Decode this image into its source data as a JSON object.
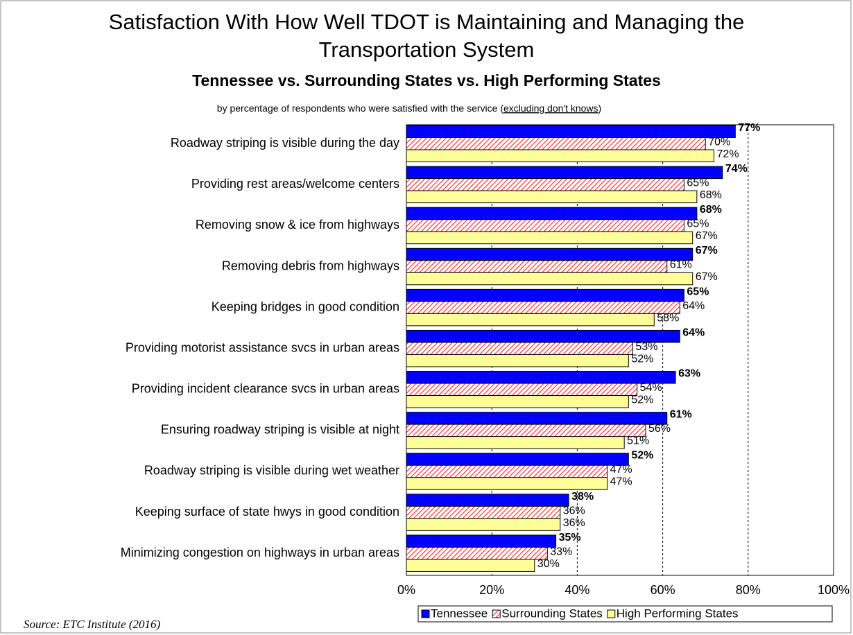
{
  "chart_data": {
    "type": "bar",
    "orientation": "horizontal",
    "title": "Satisfaction With How Well TDOT is Maintaining and Managing the Transportation System",
    "subtitle": "Tennessee vs. Surrounding States vs. High Performing States",
    "note_parts": [
      "by percentage of respondents who were satisfied with the service (",
      "excluding don't knows",
      ")"
    ],
    "source": "Source:  ETC Institute (2016)",
    "categories": [
      "Roadway striping is visible during the day",
      "Providing rest areas/welcome centers",
      "Removing snow & ice from highways",
      "Removing debris from highways",
      "Keeping bridges in good condition",
      "Providing motorist assistance svcs in urban areas",
      "Providing incident clearance svcs in urban areas",
      "Ensuring roadway striping is visible at night",
      "Roadway striping is visible during wet weather",
      "Keeping surface of state hwys in good condition",
      "Minimizing congestion on highways in urban areas"
    ],
    "series": [
      {
        "name": "Tennessee",
        "color": "#0000ff",
        "values": [
          77,
          74,
          68,
          67,
          65,
          64,
          63,
          61,
          52,
          38,
          35
        ],
        "value_labels": [
          "77%",
          "74%",
          "68%",
          "67%",
          "65%",
          "64%",
          "63%",
          "61%",
          "52%",
          "38%",
          "35%"
        ]
      },
      {
        "name": "Surrounding States",
        "color": "#ff3333",
        "pattern": "hatch",
        "values": [
          70,
          65,
          65,
          61,
          64,
          53,
          54,
          56,
          47,
          36,
          33
        ],
        "value_labels": [
          "70%",
          "65%",
          "65%",
          "61%",
          "64%",
          "53%",
          "54%",
          "56%",
          "47%",
          "36%",
          "33%"
        ]
      },
      {
        "name": "High Performing States",
        "color": "#ffff99",
        "values": [
          72,
          68,
          67,
          67,
          58,
          52,
          52,
          51,
          47,
          36,
          30
        ],
        "value_labels": [
          "72%",
          "68%",
          "67%",
          "67%",
          "58%",
          "52%",
          "52%",
          "51%",
          "47%",
          "36%",
          "30%"
        ]
      }
    ],
    "xlim": [
      0,
      100
    ],
    "xticks": [
      {
        "value": 0,
        "label": "0%"
      },
      {
        "value": 20,
        "label": "20%"
      },
      {
        "value": 40,
        "label": "40%"
      },
      {
        "value": 60,
        "label": "60%"
      },
      {
        "value": 80,
        "label": "80%"
      },
      {
        "value": 100,
        "label": "100%"
      }
    ],
    "grid": true,
    "legend": "bottom-right"
  }
}
